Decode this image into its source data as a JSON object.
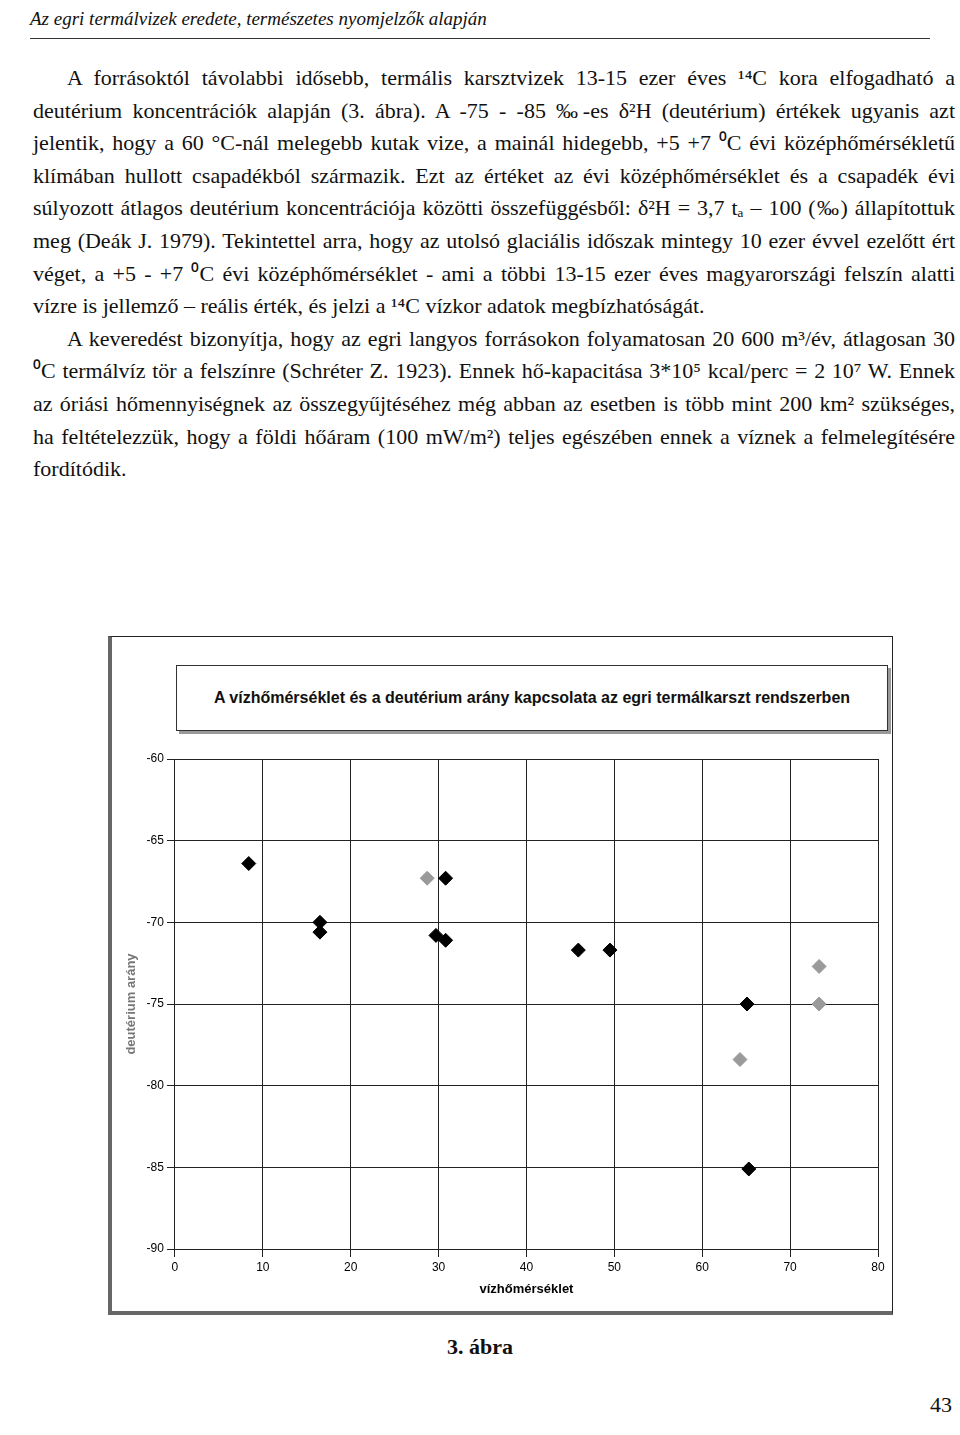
{
  "header": "Az egri termálvizek eredete, természetes nyomjelzők alapján",
  "paragraphs": [
    "A forrásoktól távolabbi idősebb, termális karsztvizek 13-15 ezer éves ¹⁴C kora elfogadható a deutérium koncentrációk alapján (3. ábra). A -75 - -85 ‰-es δ²H (deutérium) értékek ugyanis azt jelentik, hogy a 60 °C-nál melegebb kutak vize, a mainál hidegebb, +5 +7 ⁰C évi középhőmérsékletű klímában hullott csapadékból származik. Ezt az értéket az évi középhőmérséklet és a csapadék évi súlyozott átlagos deutérium koncentrációja közötti összefüggésből: δ²H = 3,7 tₐ – 100 (‰) állapítottuk meg (Deák J. 1979). Tekintettel arra, hogy az utolsó glaciális időszak mintegy 10 ezer évvel ezelőtt ért véget, a +5 - +7 ⁰C évi középhőmérséklet - ami a többi 13-15 ezer éves magyarországi felszín alatti vízre is jellemző – reális érték, és jelzi a ¹⁴C vízkor adatok megbízhatóságát.",
    "A keveredést bizonyítja, hogy az egri langyos forrásokon folyamatosan 20 600 m³/év, átlagosan 30 ⁰C termálvíz tör a felszínre (Schréter Z. 1923). Ennek hő-kapacitása 3*10⁵ kcal/perc = 2 10⁷ W. Ennek az óriási hőmennyiségnek az összegyűjtéséhez még abban az esetben is több mint 200 km² szükséges, ha feltételezzük, hogy a földi hőáram (100 mW/m²) teljes egészében ennek a víznek a felmelegítésére fordítódik."
  ],
  "chart_data": {
    "type": "scatter",
    "title": "A vízhőmérséklet és a deutérium arány kapcsolata az egri termálkarszt rendszerben",
    "xlabel": "vízhőmérséklet",
    "ylabel": "deutérium arány",
    "xlim": [
      0,
      80
    ],
    "xticks": [
      0,
      10,
      20,
      30,
      40,
      50,
      60,
      70,
      80
    ],
    "ylim": [
      -90,
      -60
    ],
    "yticks": [
      -90,
      -85,
      -80,
      -75,
      -70,
      -65,
      -60
    ],
    "grid": true,
    "series": [
      {
        "color": "#000000",
        "marker": "diamond",
        "x": [
          8.4,
          16.5,
          16.5,
          29.7,
          30.8,
          30.8,
          45.9,
          49.5,
          65.1,
          65.3
        ],
        "values": [
          -66.4,
          -70.0,
          -70.6,
          -70.8,
          -71.1,
          -67.3,
          -71.7,
          -71.7,
          -75.0,
          -85.1
        ]
      },
      {
        "color": "#9a9a9a",
        "marker": "diamond",
        "x": [
          28.7,
          64.3,
          73.3,
          73.3
        ],
        "values": [
          -67.3,
          -78.4,
          -72.7,
          -75.0
        ]
      }
    ]
  },
  "caption": "3. ábra",
  "page_number": "43"
}
